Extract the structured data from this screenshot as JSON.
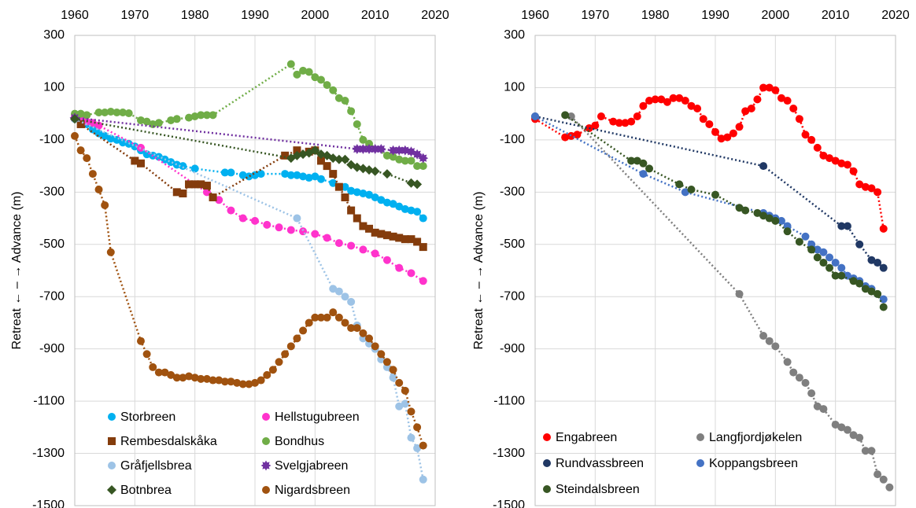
{
  "chart_data": [
    {
      "type": "line",
      "ylabel": "Retreat ←  –  → Advance (m)",
      "xlim": [
        1960,
        2020
      ],
      "xticks": [
        1960,
        1970,
        1980,
        1990,
        2000,
        2010,
        2020
      ],
      "ylim": [
        -1500,
        300
      ],
      "yticks": [
        -1500,
        -1300,
        -1100,
        -900,
        -700,
        -500,
        -300,
        -100,
        100,
        300
      ],
      "grid": true,
      "legend": "bottom",
      "series": [
        {
          "name": "Storbreen",
          "color": "#00b0f0",
          "marker": "circle",
          "x": [
            1960,
            1962,
            1963,
            1964,
            1965,
            1966,
            1967,
            1968,
            1969,
            1970,
            1971,
            1972,
            1973,
            1974,
            1975,
            1976,
            1977,
            1978,
            1980,
            1985,
            1986,
            1988,
            1989,
            1990,
            1991,
            1995,
            1996,
            1997,
            1998,
            1999,
            2000,
            2001,
            2003,
            2005,
            2006,
            2007,
            2008,
            2009,
            2010,
            2011,
            2012,
            2013,
            2014,
            2015,
            2016,
            2017,
            2018
          ],
          "values": [
            -20,
            -40,
            -60,
            -75,
            -85,
            -95,
            -100,
            -110,
            -115,
            -125,
            -140,
            -155,
            -160,
            -165,
            -175,
            -185,
            -195,
            -200,
            -210,
            -225,
            -225,
            -235,
            -240,
            -235,
            -230,
            -230,
            -235,
            -235,
            -240,
            -245,
            -240,
            -250,
            -265,
            -280,
            -295,
            -300,
            -305,
            -310,
            -320,
            -330,
            -340,
            -345,
            -355,
            -365,
            -370,
            -375,
            -400
          ]
        },
        {
          "name": "Hellstugubreen",
          "color": "#ff33cc",
          "marker": "circle",
          "x": [
            1960,
            1961,
            1962,
            1963,
            1964,
            1971,
            1980,
            1982,
            1984,
            1986,
            1988,
            1990,
            1992,
            1994,
            1996,
            1998,
            2000,
            2002,
            2004,
            2006,
            2008,
            2010,
            2012,
            2014,
            2016,
            2018
          ],
          "values": [
            -10,
            -20,
            -30,
            -35,
            -45,
            -130,
            -270,
            -300,
            -330,
            -370,
            -400,
            -410,
            -425,
            -435,
            -445,
            -450,
            -460,
            -475,
            -495,
            -505,
            -520,
            -535,
            -560,
            -590,
            -610,
            -640
          ]
        },
        {
          "name": "Rembesdalskåka",
          "color": "#843c0c",
          "marker": "square",
          "x": [
            1961,
            1970,
            1971,
            1977,
            1978,
            1979,
            1980,
            1981,
            1982,
            1983,
            1995,
            1997,
            1999,
            2000,
            2001,
            2002,
            2003,
            2004,
            2005,
            2006,
            2007,
            2008,
            2009,
            2010,
            2011,
            2012,
            2013,
            2014,
            2015,
            2016,
            2017,
            2018
          ],
          "values": [
            -40,
            -180,
            -190,
            -300,
            -305,
            -270,
            -270,
            -270,
            -275,
            -320,
            -160,
            -140,
            -145,
            -140,
            -180,
            -200,
            -230,
            -280,
            -320,
            -370,
            -400,
            -430,
            -440,
            -455,
            -460,
            -465,
            -470,
            -475,
            -480,
            -480,
            -490,
            -510
          ]
        },
        {
          "name": "Bondhus",
          "color": "#70ad47",
          "marker": "circle",
          "x": [
            1960,
            1961,
            1962,
            1964,
            1965,
            1966,
            1967,
            1968,
            1969,
            1971,
            1972,
            1973,
            1974,
            1976,
            1977,
            1979,
            1980,
            1981,
            1982,
            1983,
            1996,
            1997,
            1998,
            1999,
            2000,
            2001,
            2002,
            2003,
            2004,
            2005,
            2006,
            2007,
            2008,
            2009,
            2012,
            2013,
            2014,
            2015,
            2016,
            2017,
            2018
          ],
          "values": [
            0,
            0,
            -5,
            5,
            5,
            8,
            5,
            5,
            2,
            -25,
            -30,
            -40,
            -35,
            -25,
            -20,
            -15,
            -10,
            -5,
            -5,
            -5,
            190,
            150,
            165,
            160,
            140,
            130,
            110,
            90,
            60,
            50,
            10,
            -40,
            -100,
            -115,
            -160,
            -165,
            -175,
            -180,
            -180,
            -200,
            -200
          ]
        },
        {
          "name": "Gråfjellsbrea",
          "color": "#9dc3e6",
          "marker": "circle",
          "x": [
            1960,
            1997,
            2003,
            2004,
            2005,
            2006,
            2007,
            2008,
            2009,
            2010,
            2011,
            2012,
            2013,
            2014,
            2015,
            2016,
            2017,
            2018
          ],
          "values": [
            -20,
            -400,
            -670,
            -680,
            -700,
            -720,
            -810,
            -860,
            -880,
            -900,
            -940,
            -970,
            -1010,
            -1120,
            -1110,
            -1240,
            -1280,
            -1400
          ]
        },
        {
          "name": "Svelgjabreen",
          "color": "#7030a0",
          "marker": "star",
          "x": [
            1960,
            2007,
            2008,
            2009,
            2010,
            2011,
            2013,
            2014,
            2015,
            2016,
            2017,
            2018
          ],
          "values": [
            -15,
            -135,
            -135,
            -135,
            -135,
            -135,
            -140,
            -140,
            -140,
            -145,
            -155,
            -170
          ]
        },
        {
          "name": "Botnbrea",
          "color": "#375623",
          "marker": "diamond",
          "x": [
            1960,
            1996,
            1997,
            1998,
            1999,
            2000,
            2001,
            2002,
            2003,
            2004,
            2005,
            2006,
            2007,
            2008,
            2009,
            2010,
            2012,
            2016,
            2017
          ],
          "values": [
            -20,
            -170,
            -160,
            -155,
            -150,
            -140,
            -155,
            -160,
            -170,
            -175,
            -175,
            -195,
            -205,
            -210,
            -215,
            -220,
            -230,
            -265,
            -270
          ]
        },
        {
          "name": "Nigardsbreen",
          "color": "#a0520f",
          "marker": "circle",
          "x": [
            1960,
            1961,
            1962,
            1963,
            1964,
            1965,
            1966,
            1971,
            1972,
            1973,
            1974,
            1975,
            1976,
            1977,
            1978,
            1979,
            1980,
            1981,
            1982,
            1983,
            1984,
            1985,
            1986,
            1987,
            1988,
            1989,
            1990,
            1991,
            1992,
            1993,
            1994,
            1995,
            1996,
            1997,
            1998,
            1999,
            2000,
            2001,
            2002,
            2003,
            2004,
            2005,
            2006,
            2007,
            2008,
            2009,
            2010,
            2011,
            2012,
            2013,
            2014,
            2015,
            2016,
            2017,
            2018
          ],
          "values": [
            -85,
            -140,
            -170,
            -230,
            -290,
            -350,
            -530,
            -870,
            -920,
            -970,
            -990,
            -990,
            -1000,
            -1010,
            -1010,
            -1005,
            -1010,
            -1015,
            -1015,
            -1020,
            -1020,
            -1025,
            -1025,
            -1030,
            -1035,
            -1035,
            -1030,
            -1020,
            -1000,
            -980,
            -950,
            -920,
            -890,
            -860,
            -830,
            -800,
            -780,
            -780,
            -780,
            -760,
            -780,
            -800,
            -820,
            -820,
            -840,
            -860,
            -890,
            -920,
            -950,
            -980,
            -1030,
            -1060,
            -1140,
            -1200,
            -1270
          ]
        }
      ]
    },
    {
      "type": "line",
      "ylabel": "Retreat ←  –  → Advance (m)",
      "xlim": [
        1960,
        2020
      ],
      "xticks": [
        1960,
        1970,
        1980,
        1990,
        2000,
        2010,
        2020
      ],
      "ylim": [
        -1500,
        300
      ],
      "yticks": [
        -1500,
        -1300,
        -1100,
        -900,
        -700,
        -500,
        -300,
        -100,
        100,
        300
      ],
      "grid": true,
      "legend": "bottom",
      "series": [
        {
          "name": "Engabreen",
          "color": "#ff0000",
          "marker": "circle",
          "x": [
            1960,
            1965,
            1966,
            1967,
            1969,
            1970,
            1971,
            1973,
            1974,
            1975,
            1976,
            1977,
            1978,
            1979,
            1980,
            1981,
            1982,
            1983,
            1984,
            1985,
            1986,
            1987,
            1988,
            1989,
            1990,
            1991,
            1992,
            1993,
            1994,
            1995,
            1996,
            1997,
            1998,
            1999,
            2000,
            2001,
            2002,
            2003,
            2004,
            2005,
            2006,
            2007,
            2008,
            2009,
            2010,
            2011,
            2012,
            2013,
            2014,
            2015,
            2016,
            2017,
            2018
          ],
          "values": [
            -20,
            -90,
            -85,
            -80,
            -55,
            -45,
            -10,
            -30,
            -35,
            -35,
            -30,
            -10,
            30,
            50,
            55,
            55,
            45,
            60,
            60,
            50,
            30,
            20,
            -20,
            -40,
            -70,
            -95,
            -90,
            -75,
            -50,
            10,
            20,
            55,
            100,
            100,
            90,
            60,
            50,
            20,
            -20,
            -80,
            -100,
            -130,
            -160,
            -170,
            -180,
            -190,
            -195,
            -220,
            -270,
            -280,
            -285,
            -300,
            -440
          ]
        },
        {
          "name": "Langfjordjøkelen",
          "color": "#7f7f7f",
          "marker": "circle",
          "x": [
            1966,
            1994,
            1998,
            1999,
            2000,
            2002,
            2003,
            2004,
            2005,
            2006,
            2007,
            2008,
            2010,
            2011,
            2012,
            2013,
            2014,
            2015,
            2016,
            2017,
            2018,
            2019
          ],
          "values": [
            -10,
            -690,
            -850,
            -870,
            -890,
            -950,
            -990,
            -1010,
            -1030,
            -1070,
            -1120,
            -1130,
            -1190,
            -1200,
            -1210,
            -1230,
            -1240,
            -1290,
            -1290,
            -1380,
            -1400,
            -1430
          ]
        },
        {
          "name": "Rundvassbreen",
          "color": "#203864",
          "marker": "circle",
          "x": [
            1960,
            1998,
            2011,
            2012,
            2014,
            2016,
            2017,
            2018
          ],
          "values": [
            -10,
            -200,
            -430,
            -430,
            -500,
            -560,
            -570,
            -590
          ]
        },
        {
          "name": "Koppangsbreen",
          "color": "#4472c4",
          "marker": "circle",
          "x": [
            1960,
            1978,
            1985,
            1998,
            1999,
            2000,
            2001,
            2002,
            2005,
            2006,
            2007,
            2008,
            2009,
            2010,
            2011,
            2012,
            2013,
            2014,
            2015,
            2016,
            2017,
            2018
          ],
          "values": [
            -10,
            -230,
            -300,
            -380,
            -390,
            -400,
            -410,
            -430,
            -470,
            -500,
            -520,
            -530,
            -550,
            -570,
            -590,
            -620,
            -630,
            -640,
            -660,
            -670,
            -690,
            -710
          ]
        },
        {
          "name": "Steindalsbreen",
          "color": "#375623",
          "marker": "circle",
          "x": [
            1965,
            1976,
            1977,
            1978,
            1979,
            1984,
            1986,
            1990,
            1994,
            1995,
            1997,
            1998,
            1999,
            2000,
            2002,
            2004,
            2006,
            2007,
            2008,
            2009,
            2010,
            2011,
            2013,
            2014,
            2015,
            2016,
            2017,
            2018
          ],
          "values": [
            -5,
            -180,
            -180,
            -190,
            -210,
            -270,
            -290,
            -310,
            -360,
            -370,
            -380,
            -390,
            -400,
            -410,
            -450,
            -490,
            -520,
            -550,
            -570,
            -590,
            -620,
            -620,
            -640,
            -650,
            -670,
            -680,
            -690,
            -740
          ]
        }
      ]
    }
  ]
}
